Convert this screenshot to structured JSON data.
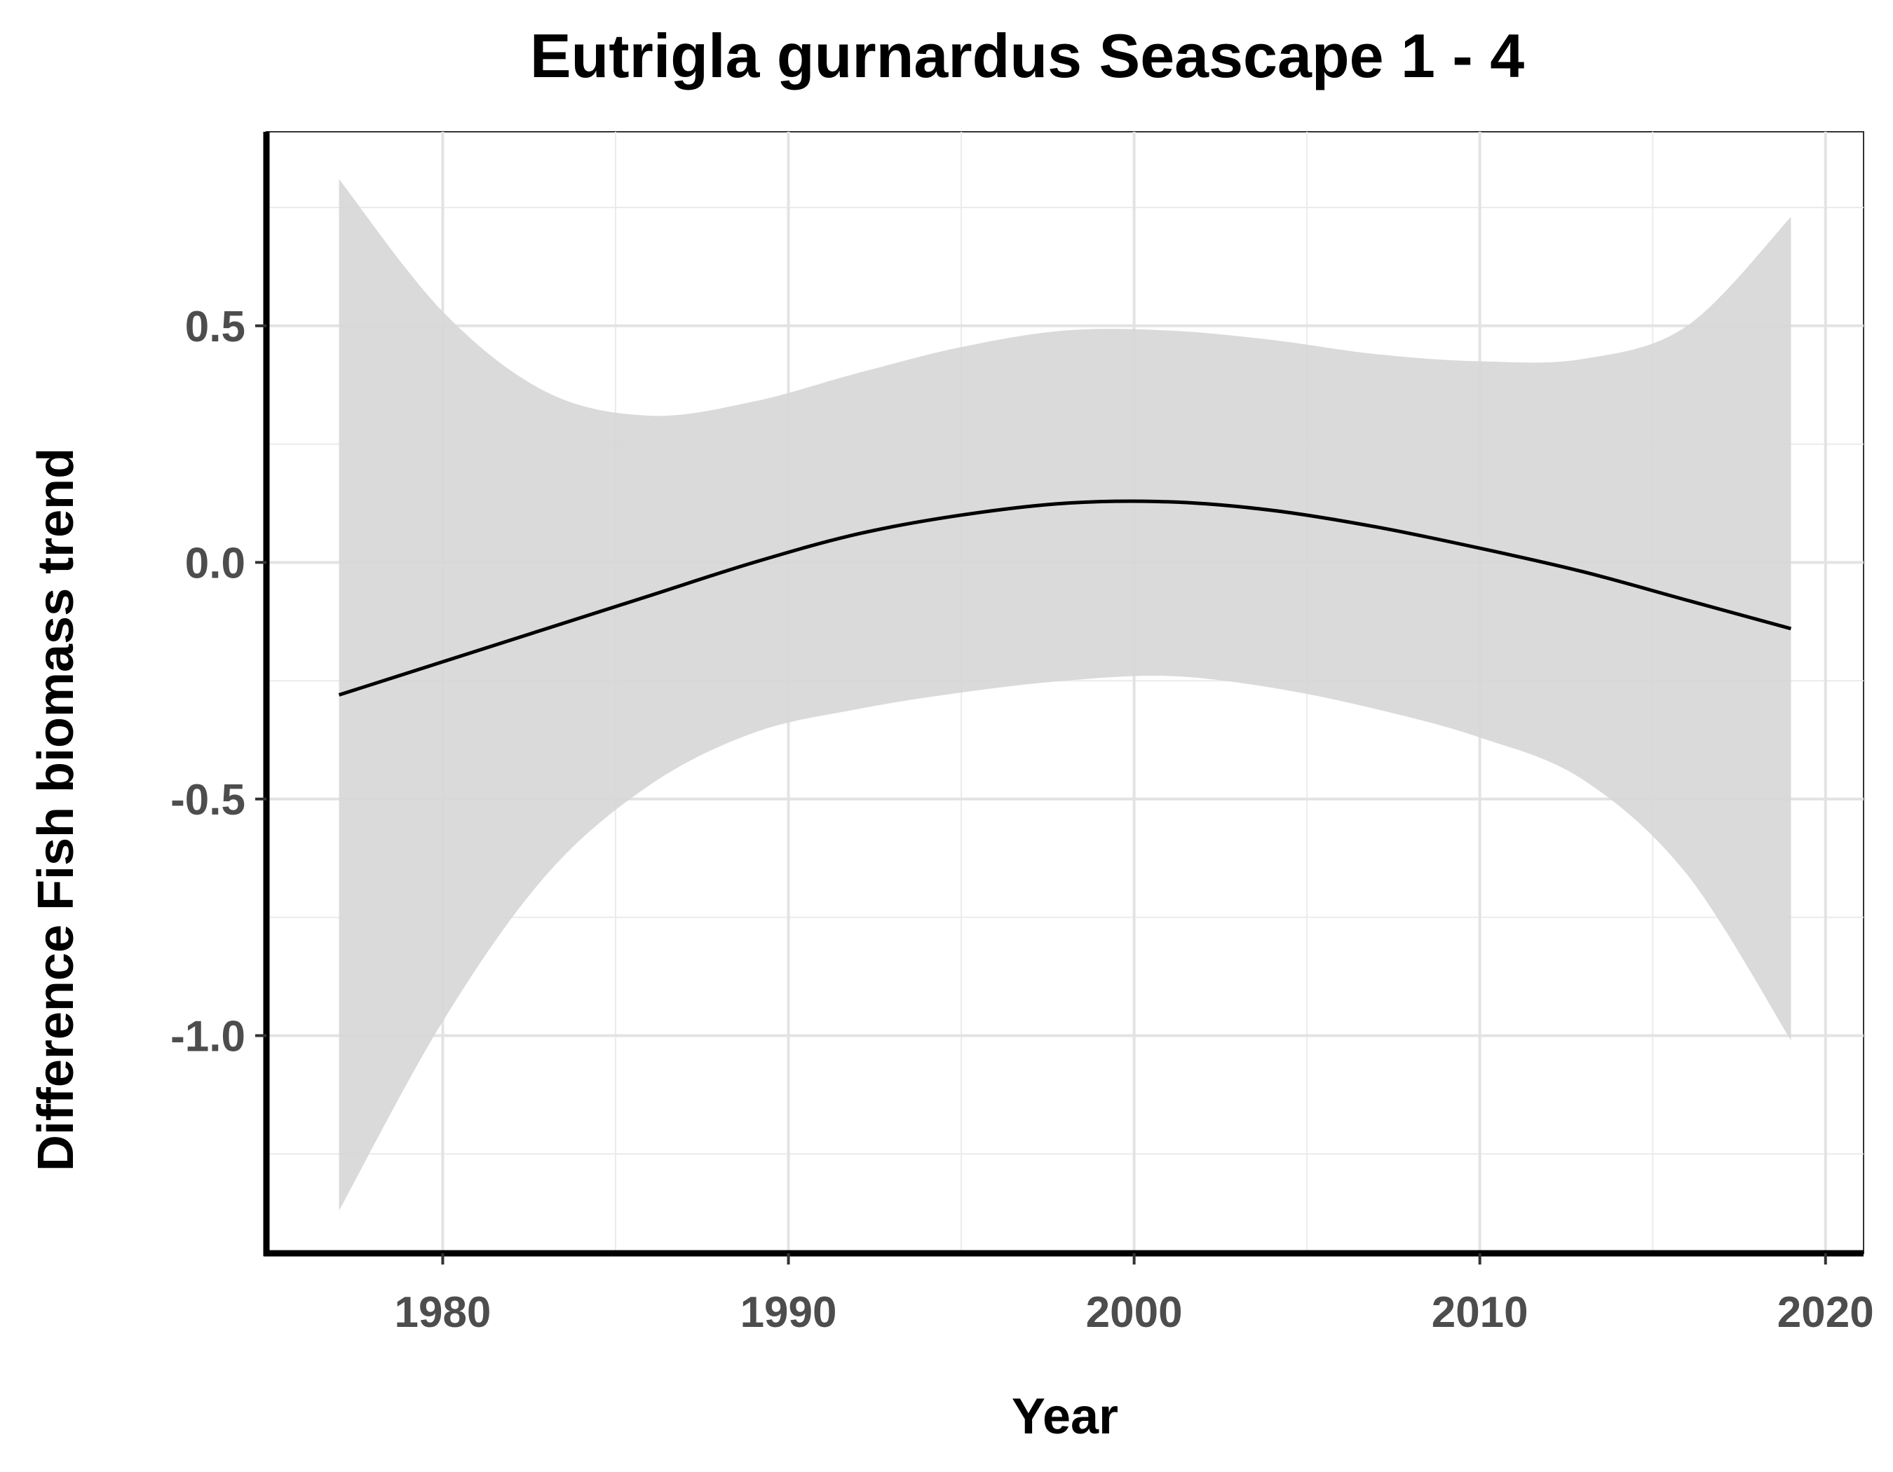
{
  "chart_data": {
    "type": "line",
    "title": "Eutrigla gurnardus Seascape 1 - 4",
    "xlabel": "Year",
    "ylabel": "Difference Fish biomass trend",
    "xlim": [
      1974.9,
      2021.1
    ],
    "ylim": [
      -1.46,
      0.91
    ],
    "x_ticks": [
      1980,
      1990,
      2000,
      2010,
      2020
    ],
    "x_tick_labels": [
      "1980",
      "1990",
      "2000",
      "2010",
      "2020"
    ],
    "y_ticks": [
      -1.0,
      -0.5,
      0.0,
      0.5
    ],
    "y_tick_labels": [
      "-1.0",
      "-0.5",
      "0.0",
      "0.5"
    ],
    "grid": true,
    "band_color": "#d6d6d6",
    "line_color": "#000000",
    "series": [
      {
        "x": [
          1977,
          1980,
          1983,
          1986,
          1989,
          1992,
          1995,
          1998,
          2001,
          2004,
          2007,
          2010,
          2013,
          2016,
          2019
        ],
        "y": [
          -0.28,
          -0.21,
          -0.14,
          -0.07,
          0.0,
          0.06,
          0.1,
          0.125,
          0.128,
          0.11,
          0.075,
          0.03,
          -0.02,
          -0.08,
          -0.14
        ],
        "ymin": [
          -1.37,
          -0.97,
          -0.66,
          -0.47,
          -0.36,
          -0.31,
          -0.275,
          -0.25,
          -0.24,
          -0.265,
          -0.31,
          -0.37,
          -0.46,
          -0.66,
          -1.01
        ],
        "ymax": [
          0.81,
          0.53,
          0.36,
          0.31,
          0.34,
          0.4,
          0.455,
          0.49,
          0.49,
          0.47,
          0.44,
          0.425,
          0.43,
          0.5,
          0.73
        ]
      }
    ]
  }
}
